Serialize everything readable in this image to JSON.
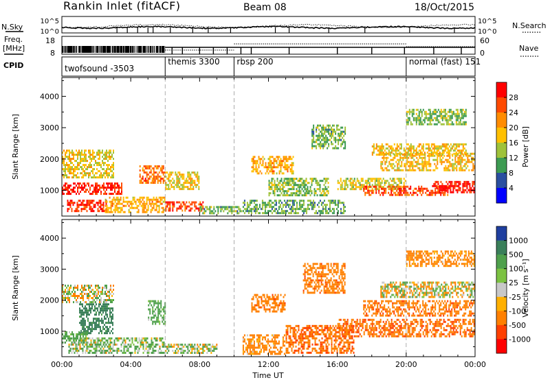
{
  "header": {
    "station": "Rankin Inlet (fitACF)",
    "beam": "Beam 08",
    "date": "18/Oct/2015"
  },
  "strips": {
    "noise_left": "N.Sky",
    "noise_left_ticks": [
      "10^5",
      "10^0"
    ],
    "noise_right": "N.Search",
    "noise_right_ticks": [
      "10^5",
      "10^0"
    ],
    "freq_left_top": "Freq.",
    "freq_left_unit": "[MHz]",
    "freq_left_ticks": [
      "18",
      "8"
    ],
    "nave_right": "Nave",
    "nave_right_ticks": [
      "60",
      "0"
    ],
    "cpid_label": "CPID",
    "cpid_segments": [
      {
        "name": "twofsound -3503",
        "start_hour": 0,
        "end_hour": 6
      },
      {
        "name": "themis 3300",
        "start_hour": 6,
        "end_hour": 10
      },
      {
        "name": "rbsp 200",
        "start_hour": 10,
        "end_hour": 20
      },
      {
        "name": "normal (fast) 151",
        "start_hour": 20,
        "end_hour": 24
      }
    ]
  },
  "axes": {
    "xlabel": "Time UT",
    "ylabel": "Slant Range [km]",
    "x_ticks": [
      "00:00",
      "04:00",
      "08:00",
      "12:00",
      "16:00",
      "20:00",
      "00:00"
    ],
    "y_ticks": [
      "1000",
      "2000",
      "3000",
      "4000"
    ]
  },
  "colorbars": {
    "power": {
      "label": "Power [dB]",
      "ticks": [
        "28",
        "24",
        "20",
        "16",
        "12",
        "8",
        "4"
      ],
      "colors": [
        "#ff0000",
        "#ff4a00",
        "#ff8c00",
        "#ffc000",
        "#9fc23a",
        "#3d9b52",
        "#2a4fa0",
        "#0000ff"
      ]
    },
    "velocity": {
      "label": "Velocity [m s⁻¹]",
      "ticks": [
        "1000",
        "500",
        "100",
        "25",
        "-25",
        "-100",
        "-500",
        "-1000"
      ],
      "colors": [
        "#1f3f9f",
        "#3a7f5a",
        "#4fa04c",
        "#7cc242",
        "#c8c8c8",
        "#ffb000",
        "#ff8000",
        "#ff4000",
        "#ff0000"
      ]
    }
  },
  "chart_data": [
    {
      "type": "heatmap",
      "title": "Power [dB]",
      "xlabel": "Time UT",
      "ylabel": "Slant Range [km]",
      "xlim": [
        0,
        24
      ],
      "ylim": [
        180,
        4600
      ],
      "value_range": [
        0,
        30
      ],
      "regions": [
        {
          "t": [
            0.0,
            3.5
          ],
          "r": [
            850,
            1250
          ],
          "v": 27
        },
        {
          "t": [
            0.0,
            3.0
          ],
          "r": [
            1400,
            2300
          ],
          "v": 15
        },
        {
          "t": [
            0.3,
            2.6
          ],
          "r": [
            300,
            700
          ],
          "v": 26
        },
        {
          "t": [
            2.5,
            6.0
          ],
          "r": [
            300,
            800
          ],
          "v": 18
        },
        {
          "t": [
            4.5,
            6.0
          ],
          "r": [
            1200,
            1800
          ],
          "v": 22
        },
        {
          "t": [
            6.0,
            8.2
          ],
          "r": [
            300,
            650
          ],
          "v": 25
        },
        {
          "t": [
            6.0,
            8.0
          ],
          "r": [
            1000,
            1600
          ],
          "v": 16
        },
        {
          "t": [
            8.0,
            10.5
          ],
          "r": [
            250,
            500
          ],
          "v": 10
        },
        {
          "t": [
            11.0,
            13.5
          ],
          "r": [
            1500,
            2100
          ],
          "v": 18
        },
        {
          "t": [
            10.5,
            16.5
          ],
          "r": [
            250,
            700
          ],
          "v": 9
        },
        {
          "t": [
            12.0,
            15.5
          ],
          "r": [
            800,
            1400
          ],
          "v": 11
        },
        {
          "t": [
            14.5,
            16.5
          ],
          "r": [
            2300,
            3100
          ],
          "v": 10
        },
        {
          "t": [
            16.0,
            20.0
          ],
          "r": [
            1000,
            1400
          ],
          "v": 14
        },
        {
          "t": [
            17.5,
            22.5
          ],
          "r": [
            850,
            1150
          ],
          "v": 24
        },
        {
          "t": [
            18.5,
            24.0
          ],
          "r": [
            1600,
            2200
          ],
          "v": 17
        },
        {
          "t": [
            18.0,
            23.5
          ],
          "r": [
            2100,
            2500
          ],
          "v": 16
        },
        {
          "t": [
            21.5,
            24.0
          ],
          "r": [
            900,
            1300
          ],
          "v": 28
        },
        {
          "t": [
            20.0,
            23.5
          ],
          "r": [
            3100,
            3600
          ],
          "v": 11
        }
      ]
    },
    {
      "type": "heatmap",
      "title": "Velocity [m s⁻¹]",
      "xlabel": "Time UT",
      "ylabel": "Slant Range [km]",
      "xlim": [
        0,
        24
      ],
      "ylim": [
        180,
        4600
      ],
      "value_range": [
        -1000,
        1000
      ],
      "regions": [
        {
          "t": [
            0.0,
            3.0
          ],
          "r": [
            1900,
            2500
          ],
          "v": 0
        },
        {
          "t": [
            1.0,
            3.0
          ],
          "r": [
            900,
            1900
          ],
          "v": 400
        },
        {
          "t": [
            0.0,
            1.5
          ],
          "r": [
            600,
            1000
          ],
          "v": 150
        },
        {
          "t": [
            0.3,
            6.0
          ],
          "r": [
            250,
            800
          ],
          "v": 60
        },
        {
          "t": [
            6.0,
            9.0
          ],
          "r": [
            250,
            600
          ],
          "v": 40
        },
        {
          "t": [
            5.0,
            6.0
          ],
          "r": [
            1200,
            2000
          ],
          "v": 120
        },
        {
          "t": [
            10.5,
            13.0
          ],
          "r": [
            250,
            900
          ],
          "v": -150
        },
        {
          "t": [
            11.0,
            13.0
          ],
          "r": [
            1600,
            2200
          ],
          "v": -200
        },
        {
          "t": [
            13.0,
            17.0
          ],
          "r": [
            250,
            1200
          ],
          "v": -250
        },
        {
          "t": [
            14.0,
            16.5
          ],
          "r": [
            2200,
            3200
          ],
          "v": -200
        },
        {
          "t": [
            16.0,
            24.0
          ],
          "r": [
            800,
            1400
          ],
          "v": -250
        },
        {
          "t": [
            17.5,
            24.0
          ],
          "r": [
            1500,
            2000
          ],
          "v": -220
        },
        {
          "t": [
            18.5,
            24.0
          ],
          "r": [
            2100,
            2600
          ],
          "v": 0
        },
        {
          "t": [
            20.0,
            24.0
          ],
          "r": [
            3100,
            3600
          ],
          "v": -150
        }
      ]
    }
  ]
}
